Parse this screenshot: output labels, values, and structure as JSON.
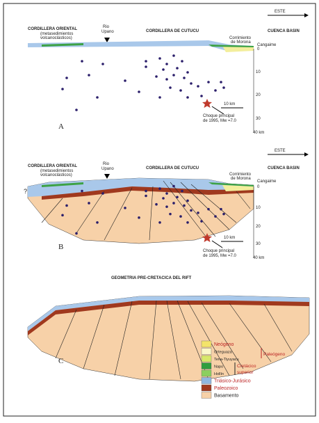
{
  "direction_label": "ESTE",
  "panels": [
    {
      "letter": "A",
      "west_title": "CORDILLERA ORIENTAL",
      "west_note_1": "(metasedimientos",
      "west_note_2": "volcanoclásticos)",
      "river_1": "Rio",
      "river_2": "Upano",
      "center_title": "CORDILLERA DE CUTUCU",
      "east_title": "CUENCA BASIN",
      "thrust_1": "Corrimiento",
      "thrust_2": "de Morona",
      "town": "Cangaime",
      "depths": [
        "0",
        "10",
        "20",
        "30",
        "40 km"
      ],
      "scale_bar": "10 km",
      "quake_1": "Choque principal",
      "quake_2": "de 1995, Mw =7.0"
    },
    {
      "letter": "B",
      "west_title": "CORDILLERA ORIENTAL",
      "west_note_1": "(metasedimientos",
      "west_note_2": "volcanoclásticos)",
      "unknown": "?",
      "river_1": "Rio",
      "river_2": "Upano",
      "center_title": "CORDILLERA DE CUTUCU",
      "east_title": "CUENCA BASIN",
      "thrust_1": "Corrimiento",
      "thrust_2": "de Morona",
      "town": "Cangaime",
      "depths": [
        "0",
        "10",
        "20",
        "30",
        "40 km"
      ],
      "scale_bar": "10 km",
      "quake_1": "Choque principal",
      "quake_2": "de 1995, Mw =7.0"
    },
    {
      "letter": "C",
      "title": "GEOMETRIA PRE-CRETACICA DEL RIFT",
      "legend": [
        "Neógeno",
        "Orteguaza",
        "Tena-Tiyuyacu",
        "Napo",
        "Hollín",
        "Triásico-Jurásico",
        "Paleozoico",
        "Basamento"
      ],
      "groups": [
        "Paleógeno",
        "Cretácico",
        "superior"
      ]
    }
  ]
}
